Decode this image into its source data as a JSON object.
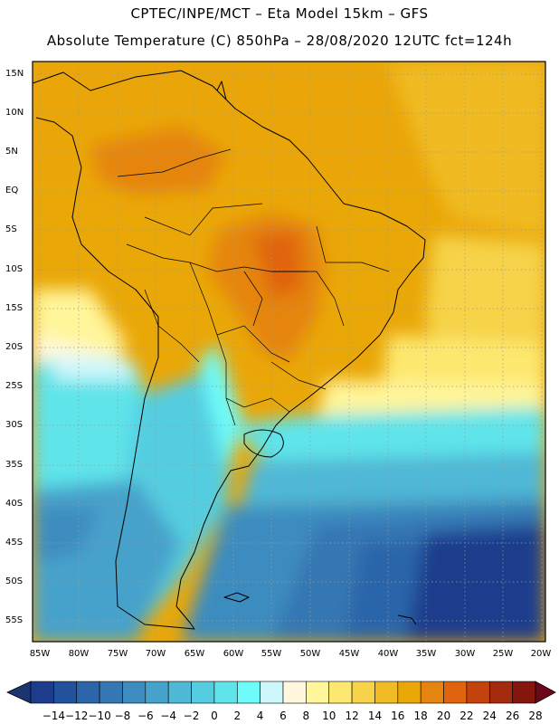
{
  "header": {
    "line1": "CPTEC/INPE/MCT –  Eta Model 15km – GFS",
    "line2": "Absolute Temperature (C) 850hPa – 28/08/2020 12UTC fct=124h"
  },
  "map": {
    "lat_labels": [
      "15N",
      "10N",
      "5N",
      "EQ",
      "5S",
      "10S",
      "15S",
      "20S",
      "25S",
      "30S",
      "35S",
      "40S",
      "45S",
      "50S",
      "55S"
    ],
    "lon_labels": [
      "85W",
      "80W",
      "75W",
      "70W",
      "65W",
      "60W",
      "55W",
      "50W",
      "45W",
      "40W",
      "35W",
      "30W",
      "25W",
      "20W"
    ]
  },
  "colorbar": {
    "labels": [
      "-14",
      "-12",
      "-10",
      "-8",
      "-6",
      "-4",
      "-2",
      "0",
      "2",
      "4",
      "6",
      "8",
      "10",
      "12",
      "14",
      "16",
      "18",
      "20",
      "22",
      "24",
      "26",
      "28"
    ],
    "colors": [
      "#1d3d8c",
      "#23529c",
      "#2c65a9",
      "#3577b3",
      "#3e8cbf",
      "#47a2cb",
      "#4fb8d6",
      "#55cde0",
      "#5ee4ea",
      "#6efcfa",
      "#cdf7fb",
      "#fff8de",
      "#fff59a",
      "#fde86f",
      "#f6d34a",
      "#f0bb24",
      "#eaa708",
      "#e58510",
      "#e0630e",
      "#c3420d",
      "#a42b0d",
      "#85160d"
    ],
    "under_color": "#1d3472",
    "over_color": "#6e0717"
  }
}
